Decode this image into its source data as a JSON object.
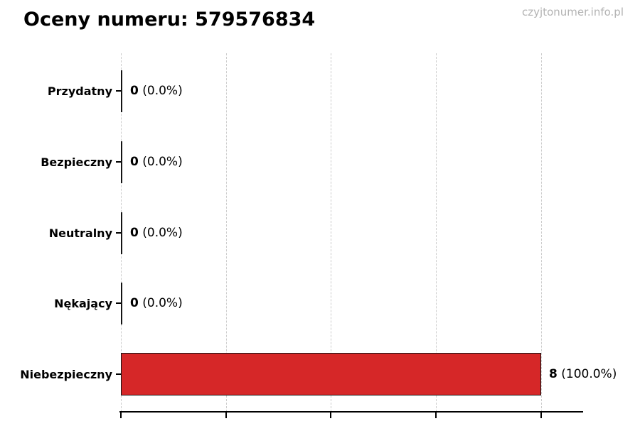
{
  "page": {
    "title": "Oceny numeru: 579576834",
    "watermark": "czyjtonumer.info.pl"
  },
  "chart_data": {
    "type": "bar",
    "orientation": "horizontal",
    "title": "Oceny numeru: 579576834",
    "categories": [
      "Przydatny",
      "Bezpieczny",
      "Neutralny",
      "Nękający",
      "Niebezpieczny"
    ],
    "values": [
      0,
      0,
      0,
      0,
      8
    ],
    "value_labels": [
      "0",
      "0",
      "0",
      "0",
      "8"
    ],
    "percent_labels": [
      "(0.0%)",
      "(0.0%)",
      "(0.0%)",
      "(0.0%)",
      "(100.0%)"
    ],
    "total_ratings": 8,
    "bar_color": "#d62728",
    "bar_edge_color": "#141414",
    "gridline_color": "#cccccc",
    "grid": "vertical-dashed",
    "legend": "none",
    "xlabel": "",
    "ylabel": "",
    "xlim": [
      0,
      8.8
    ],
    "xticks": [
      0,
      2,
      4,
      6,
      8
    ],
    "xtick_labels_visible": false
  }
}
